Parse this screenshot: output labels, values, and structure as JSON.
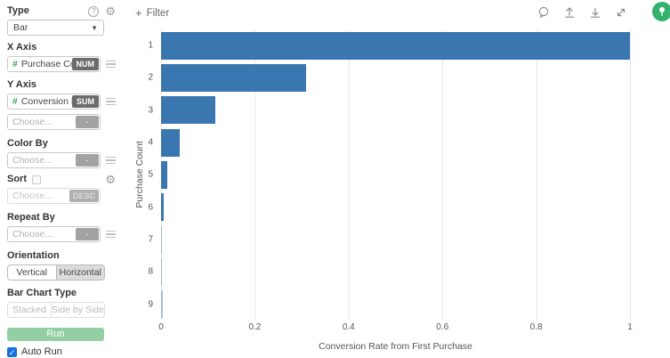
{
  "sidebar": {
    "type": {
      "label": "Type",
      "value": "Bar"
    },
    "x_axis": {
      "label": "X Axis",
      "field": "Purchase Count",
      "badge": "NUM"
    },
    "y_axis": {
      "label": "Y Axis",
      "field": "Conversion Rate fr",
      "badge": "SUM",
      "secondary_placeholder": "Choose...",
      "secondary_badge": "-"
    },
    "color_by": {
      "label": "Color By",
      "placeholder": "Choose...",
      "badge": "-"
    },
    "sort": {
      "label": "Sort",
      "checked": false,
      "placeholder": "Choose...",
      "badge": "DESC"
    },
    "repeat_by": {
      "label": "Repeat By",
      "placeholder": "Choose...",
      "badge": "-"
    },
    "orientation": {
      "label": "Orientation",
      "options": [
        "Vertical",
        "Horizontal"
      ],
      "selected": "Horizontal"
    },
    "bar_chart_type": {
      "label": "Bar Chart Type",
      "options": [
        "Stacked",
        "Side by Side"
      ],
      "selected": ""
    },
    "run_label": "Run",
    "auto_run": {
      "label": "Auto Run",
      "checked": true
    }
  },
  "toolbar": {
    "filter_label": "Filter",
    "icons": [
      "comment-icon",
      "upload-icon",
      "download-icon",
      "expand-icon",
      "pushpin-avatar"
    ]
  },
  "chart_data": {
    "type": "bar",
    "orientation": "horizontal",
    "categories": [
      "1",
      "2",
      "3",
      "4",
      "5",
      "6",
      "7",
      "8",
      "9"
    ],
    "values": [
      1.0,
      0.31,
      0.115,
      0.04,
      0.013,
      0.005,
      0.002,
      0.002,
      0.003
    ],
    "xlabel": "Conversion Rate from First Purchase",
    "ylabel": "Purchase Count",
    "xlim": [
      0,
      1
    ],
    "x_ticks": [
      0,
      0.2,
      0.4,
      0.6,
      0.8,
      1
    ],
    "grid": true,
    "legend": false,
    "bar_color": "#3a76b0"
  },
  "colors": {
    "bar_blue": "#3a76b0",
    "run_green": "#93cfa3",
    "avatar_green": "#33b26e",
    "autorun_blue": "#1470e0",
    "badge_dark": "#6c6c6c"
  }
}
